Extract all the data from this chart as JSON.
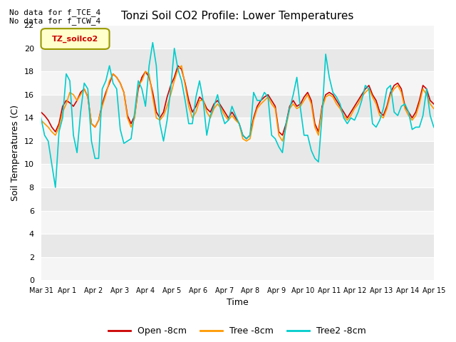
{
  "title": "Tonzi Soil CO2 Profile: Lower Temperatures",
  "xlabel": "Time",
  "ylabel": "Soil Temperatures (C)",
  "annotation_lines": [
    "No data for f_TCE_4",
    "No data for f_TCW_4"
  ],
  "legend_label": "TZ_soilco2",
  "series_labels": [
    "Open -8cm",
    "Tree -8cm",
    "Tree2 -8cm"
  ],
  "series_colors": [
    "#cc0000",
    "#ff9900",
    "#00cccc"
  ],
  "ylim": [
    0,
    22
  ],
  "yticks": [
    0,
    2,
    4,
    6,
    8,
    10,
    12,
    14,
    16,
    18,
    20,
    22
  ],
  "xtick_labels": [
    "Mar 31",
    "Apr 1",
    "Apr 2",
    "Apr 3",
    "Apr 4",
    "Apr 5",
    "Apr 6",
    "Apr 7",
    "Apr 8",
    "Apr 9",
    "Apr 10",
    "Apr 11",
    "Apr 12",
    "Apr 13",
    "Apr 14",
    "Apr 15"
  ],
  "fig_facecolor": "#ffffff",
  "plot_bg_color": "#e8e8e8",
  "band_color_light": "#f0f0f0",
  "band_color_dark": "#e0e0e0",
  "open_data": [
    14.5,
    14.2,
    13.8,
    13.2,
    12.8,
    13.5,
    15.0,
    15.5,
    15.3,
    15.0,
    15.5,
    16.2,
    16.5,
    15.8,
    13.5,
    13.2,
    13.8,
    15.2,
    16.2,
    17.0,
    17.8,
    17.5,
    17.0,
    16.2,
    14.2,
    13.5,
    14.2,
    16.5,
    17.5,
    18.0,
    17.5,
    16.2,
    14.5,
    14.0,
    14.5,
    15.8,
    16.8,
    17.5,
    18.5,
    18.2,
    17.0,
    15.5,
    14.5,
    15.0,
    15.8,
    15.5,
    14.8,
    14.5,
    15.2,
    15.5,
    15.0,
    14.5,
    14.0,
    14.5,
    14.0,
    13.5,
    12.5,
    12.2,
    12.5,
    14.0,
    15.0,
    15.5,
    15.8,
    16.0,
    15.5,
    15.0,
    12.8,
    12.5,
    13.5,
    15.0,
    15.5,
    15.0,
    15.2,
    15.8,
    16.2,
    15.5,
    13.5,
    12.8,
    15.0,
    16.0,
    16.2,
    16.0,
    15.5,
    15.0,
    14.5,
    14.0,
    14.5,
    15.0,
    15.5,
    16.0,
    16.5,
    16.8,
    16.0,
    15.5,
    14.5,
    14.2,
    15.0,
    16.2,
    16.8,
    17.0,
    16.5,
    15.0,
    14.5,
    14.0,
    14.5,
    15.5,
    16.8,
    16.5,
    15.5,
    15.2
  ],
  "tree_data": [
    13.8,
    13.5,
    13.2,
    12.8,
    12.5,
    13.2,
    14.5,
    15.2,
    16.2,
    16.0,
    15.5,
    16.0,
    16.5,
    15.8,
    13.5,
    13.2,
    13.8,
    15.0,
    16.0,
    17.2,
    17.8,
    17.5,
    17.0,
    16.2,
    14.0,
    13.2,
    14.0,
    16.8,
    17.2,
    18.0,
    17.8,
    15.8,
    14.0,
    13.8,
    14.2,
    15.0,
    16.0,
    17.2,
    18.2,
    18.5,
    16.8,
    15.0,
    14.0,
    14.5,
    15.5,
    15.5,
    14.5,
    14.0,
    14.8,
    15.2,
    14.8,
    14.2,
    13.8,
    14.2,
    13.8,
    13.5,
    12.2,
    12.0,
    12.2,
    13.8,
    14.8,
    15.2,
    15.5,
    15.8,
    15.2,
    14.8,
    12.5,
    12.0,
    13.2,
    14.8,
    15.2,
    14.8,
    15.0,
    15.5,
    16.0,
    15.2,
    13.2,
    12.5,
    14.8,
    15.8,
    16.0,
    15.8,
    15.2,
    14.8,
    14.2,
    13.8,
    14.2,
    14.8,
    15.2,
    15.8,
    16.2,
    16.5,
    15.8,
    15.2,
    14.2,
    14.0,
    14.8,
    16.0,
    16.5,
    16.8,
    16.2,
    14.8,
    14.2,
    13.8,
    14.2,
    15.2,
    16.5,
    16.0,
    15.2,
    14.8
  ],
  "tree2_data": [
    14.0,
    12.5,
    12.0,
    10.0,
    8.0,
    12.8,
    14.0,
    17.8,
    17.2,
    12.5,
    11.0,
    14.5,
    17.0,
    16.5,
    12.0,
    10.5,
    10.5,
    16.5,
    17.2,
    18.5,
    17.0,
    16.5,
    13.0,
    11.8,
    12.0,
    12.2,
    14.5,
    17.2,
    16.5,
    15.0,
    18.5,
    20.5,
    18.5,
    13.5,
    12.0,
    13.8,
    16.5,
    20.0,
    18.2,
    17.2,
    15.5,
    13.5,
    13.5,
    15.8,
    17.2,
    15.5,
    12.5,
    14.2,
    15.0,
    16.0,
    14.5,
    13.5,
    13.8,
    15.0,
    14.2,
    13.5,
    12.5,
    12.2,
    12.5,
    16.2,
    15.5,
    15.5,
    16.2,
    15.8,
    12.5,
    12.2,
    11.5,
    11.0,
    13.5,
    14.8,
    16.0,
    17.5,
    14.8,
    12.5,
    12.5,
    11.2,
    10.5,
    10.2,
    14.2,
    19.5,
    17.5,
    16.2,
    15.8,
    15.2,
    14.0,
    13.5,
    14.0,
    13.8,
    14.5,
    15.5,
    16.8,
    16.5,
    13.5,
    13.2,
    13.8,
    14.8,
    16.5,
    16.8,
    14.5,
    14.2,
    15.0,
    15.2,
    14.5,
    13.0,
    13.2,
    13.2,
    14.2,
    16.5,
    14.2,
    13.2
  ]
}
